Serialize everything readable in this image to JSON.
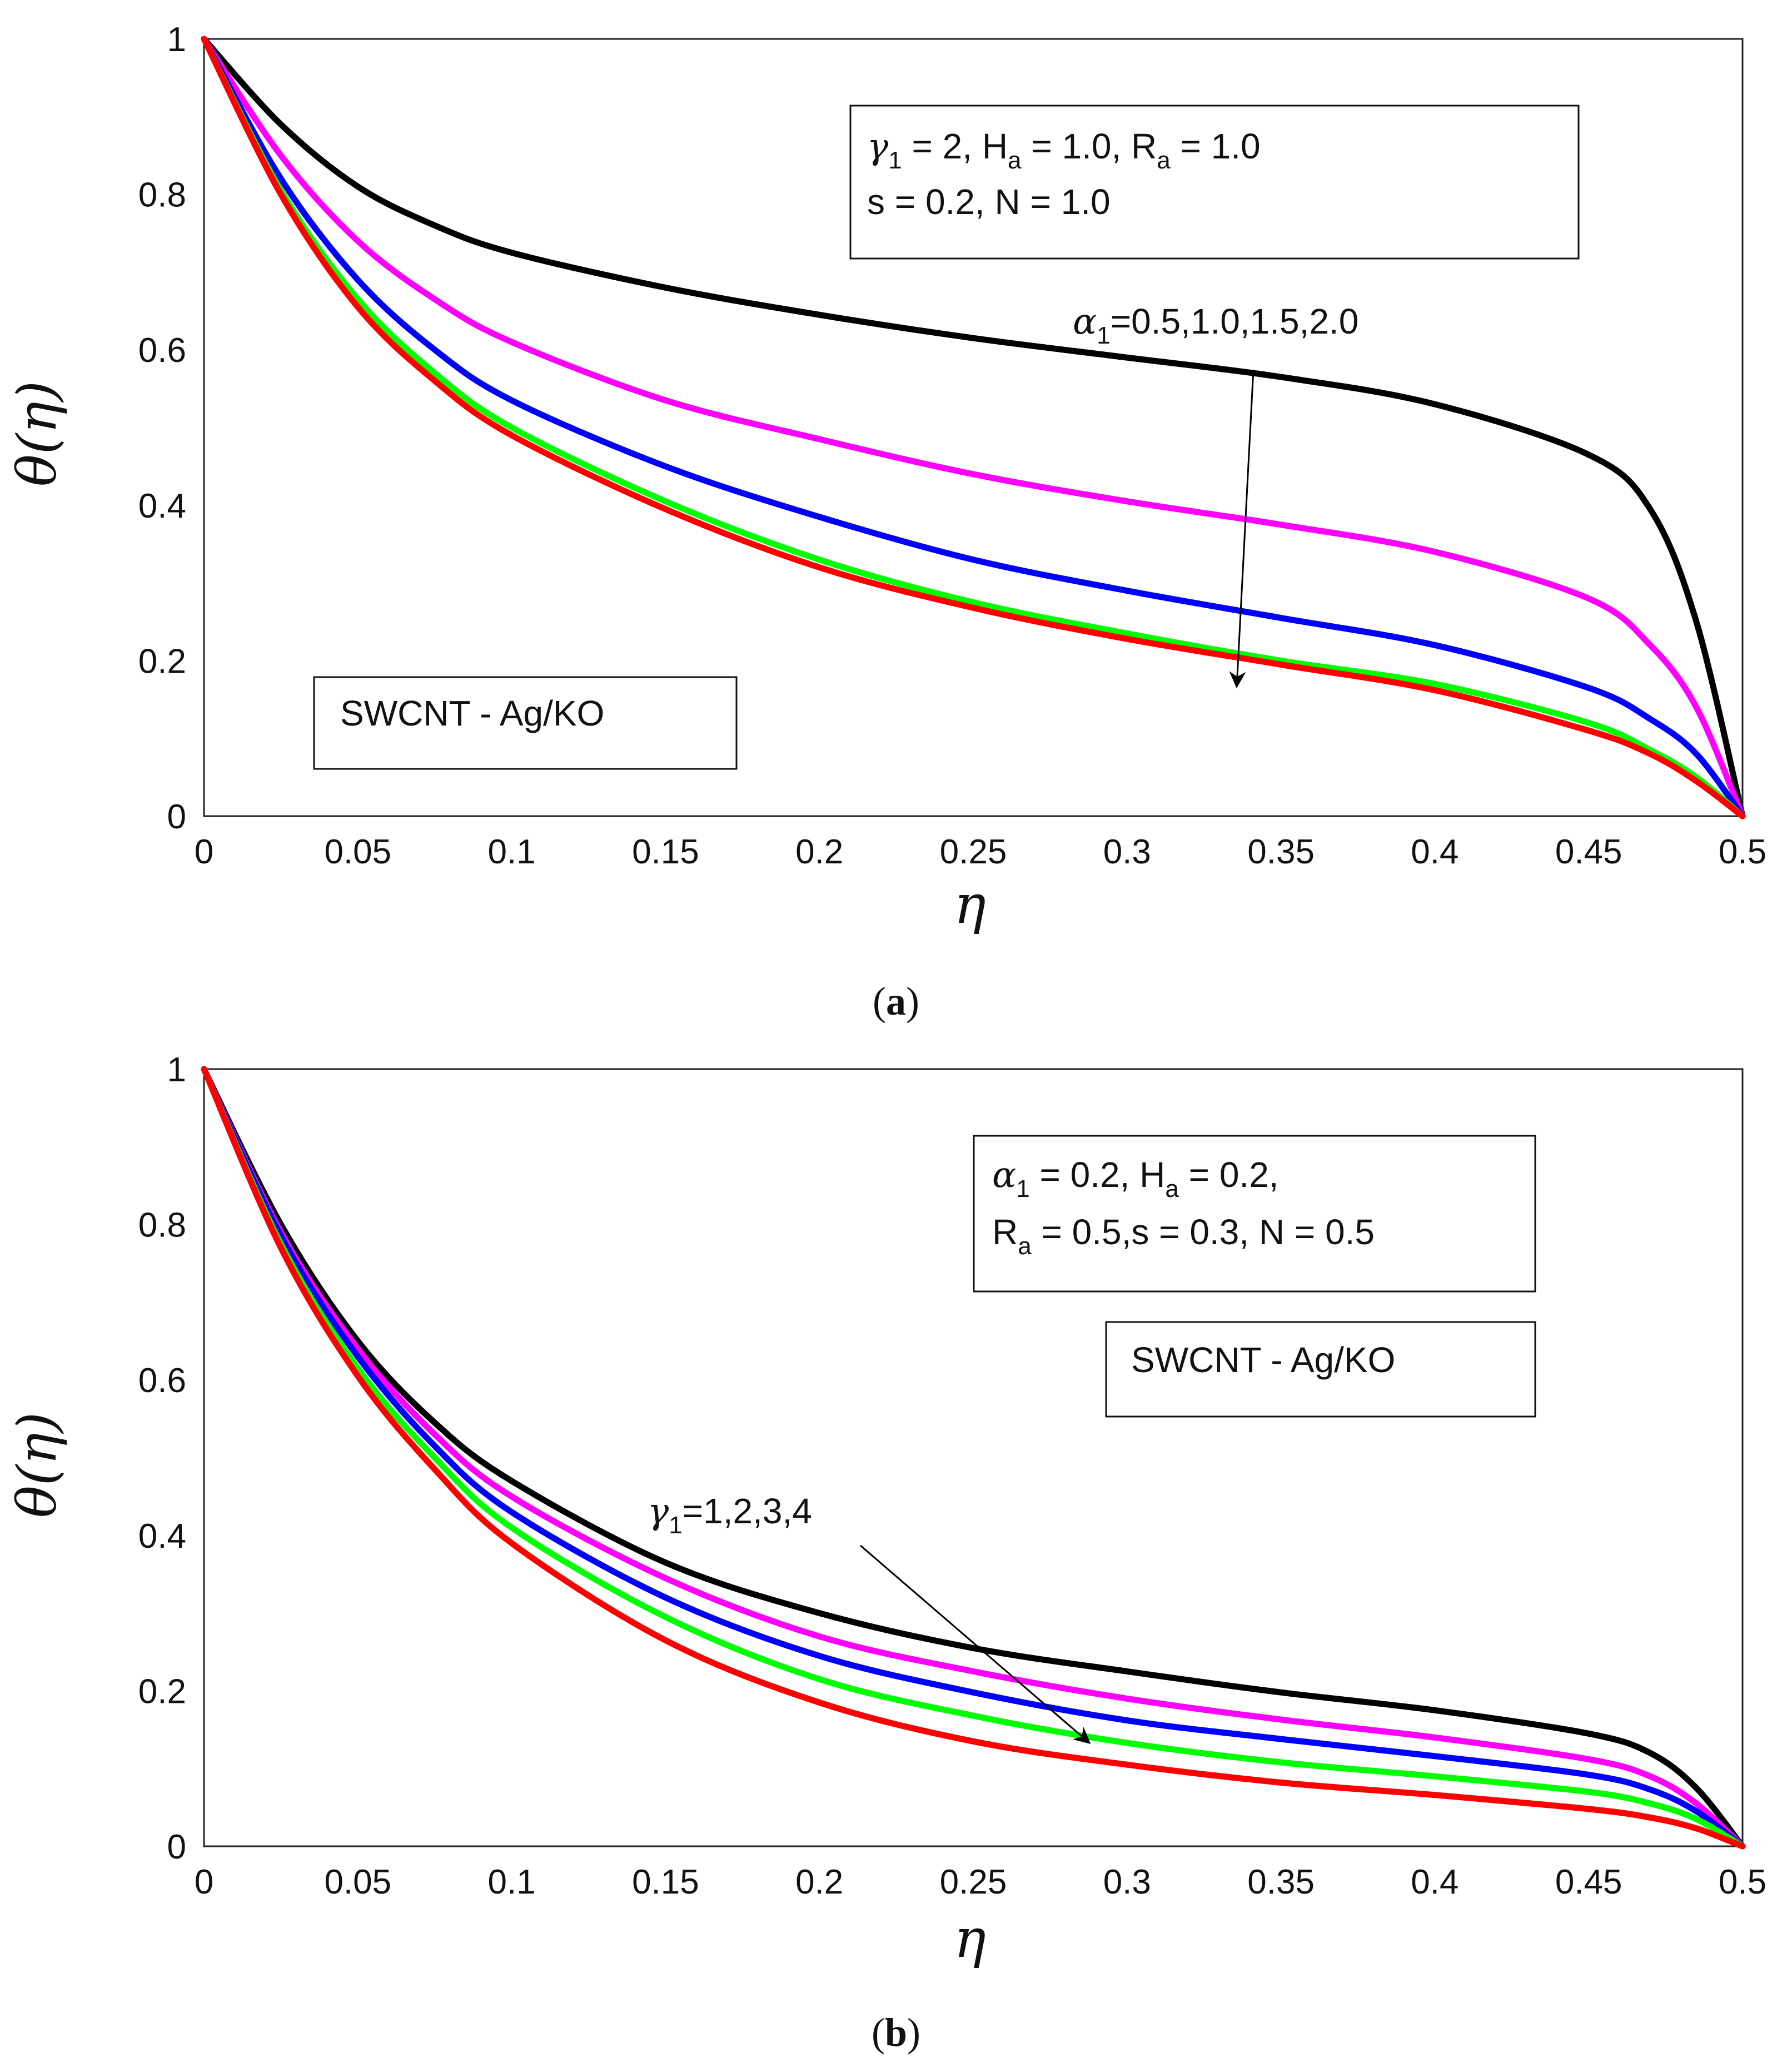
{
  "chart_data": [
    {
      "type": "line",
      "panel": "a",
      "caption": {
        "open": "(",
        "letter": "a",
        "close": ")"
      },
      "xlabel": "η",
      "ylabel": "θ(η)",
      "xlim": [
        0,
        0.5
      ],
      "ylim": [
        0,
        1
      ],
      "grid": true,
      "x_ticks": [
        "0",
        "0.05",
        "0.1",
        "0.15",
        "0.2",
        "0.25",
        "0.3",
        "0.35",
        "0.4",
        "0.45",
        "0.5"
      ],
      "y_ticks": [
        "0",
        "0.2",
        "0.4",
        "0.6",
        "0.8",
        "1"
      ],
      "x": [
        0,
        0.025,
        0.05,
        0.075,
        0.1,
        0.15,
        0.2,
        0.25,
        0.3,
        0.35,
        0.4,
        0.45,
        0.47,
        0.485,
        0.5
      ],
      "series": [
        {
          "name": "α1=0.5",
          "color": "#000000",
          "values": [
            1.0,
            0.89,
            0.81,
            0.76,
            0.725,
            0.68,
            0.645,
            0.615,
            0.59,
            0.565,
            0.53,
            0.465,
            0.395,
            0.25,
            0.0
          ]
        },
        {
          "name": "α1=1.0",
          "color": "#ff00ff",
          "values": [
            1.0,
            0.85,
            0.74,
            0.665,
            0.61,
            0.535,
            0.485,
            0.44,
            0.405,
            0.375,
            0.34,
            0.28,
            0.22,
            0.14,
            0.0
          ]
        },
        {
          "name": "α1=1.5",
          "color": "#0000ff",
          "values": [
            1.0,
            0.82,
            0.69,
            0.6,
            0.535,
            0.45,
            0.385,
            0.33,
            0.29,
            0.255,
            0.22,
            0.165,
            0.125,
            0.08,
            0.0
          ]
        },
        {
          "name": "α1=2.0",
          "color": "#00ff00",
          "values": [
            1.0,
            0.805,
            0.665,
            0.57,
            0.5,
            0.405,
            0.33,
            0.275,
            0.235,
            0.2,
            0.17,
            0.12,
            0.085,
            0.05,
            0.0
          ]
        },
        {
          "name": "α1=2.0 (red)",
          "color": "#ff0000",
          "values": [
            1.0,
            0.8,
            0.655,
            0.56,
            0.49,
            0.395,
            0.32,
            0.268,
            0.228,
            0.195,
            0.162,
            0.11,
            0.08,
            0.045,
            0.0
          ]
        }
      ],
      "annotations": {
        "params_line1": {
          "g": "γ",
          "gsub": "1",
          "t1": " = 2, H",
          "hsub": "a",
          "t2": " = 1.0, R",
          "rsub": "a",
          "t3": " = 1.0"
        },
        "params_line2": "s = 0.2, N = 1.0",
        "arrow_label": {
          "sym": "α",
          "sub": "1",
          "text": "=0.5,1.0,1.5,2.0"
        },
        "material": "SWCNT - Ag/KO"
      }
    },
    {
      "type": "line",
      "panel": "b",
      "caption": {
        "open": "(",
        "letter": "b",
        "close": ")"
      },
      "xlabel": "η",
      "ylabel": "θ(η)",
      "xlim": [
        0,
        0.5
      ],
      "ylim": [
        0,
        1
      ],
      "grid": true,
      "x_ticks": [
        "0",
        "0.05",
        "0.1",
        "0.15",
        "0.2",
        "0.25",
        "0.3",
        "0.35",
        "0.4",
        "0.45",
        "0.5"
      ],
      "y_ticks": [
        "0",
        "0.2",
        "0.4",
        "0.6",
        "0.8",
        "1"
      ],
      "x": [
        0,
        0.025,
        0.05,
        0.075,
        0.1,
        0.15,
        0.2,
        0.25,
        0.3,
        0.35,
        0.4,
        0.45,
        0.47,
        0.485,
        0.5
      ],
      "series": [
        {
          "name": "γ1=1",
          "color": "#000000",
          "values": [
            1.0,
            0.8,
            0.65,
            0.545,
            0.47,
            0.365,
            0.3,
            0.255,
            0.225,
            0.198,
            0.175,
            0.145,
            0.12,
            0.075,
            0.0
          ]
        },
        {
          "name": "γ1=2",
          "color": "#ff00ff",
          "values": [
            1.0,
            0.79,
            0.64,
            0.53,
            0.45,
            0.345,
            0.27,
            0.225,
            0.19,
            0.163,
            0.14,
            0.112,
            0.09,
            0.055,
            0.0
          ]
        },
        {
          "name": "γ1=3",
          "color": "#0000ff",
          "values": [
            1.0,
            0.785,
            0.63,
            0.515,
            0.43,
            0.32,
            0.245,
            0.198,
            0.162,
            0.138,
            0.116,
            0.092,
            0.073,
            0.045,
            0.0
          ]
        },
        {
          "name": "γ1=4",
          "color": "#00ff00",
          "values": [
            1.0,
            0.775,
            0.615,
            0.5,
            0.41,
            0.295,
            0.215,
            0.168,
            0.133,
            0.108,
            0.09,
            0.07,
            0.055,
            0.035,
            0.0
          ]
        },
        {
          "name": "γ1=4 (red)",
          "color": "#ff0000",
          "values": [
            1.0,
            0.77,
            0.605,
            0.485,
            0.39,
            0.265,
            0.185,
            0.135,
            0.105,
            0.082,
            0.066,
            0.048,
            0.037,
            0.023,
            0.0
          ]
        }
      ],
      "annotations": {
        "params_line1": {
          "a": "α",
          "asub": "1",
          "t1": " = 0.2, H",
          "hsub": "a",
          "t2": " = 0.2,"
        },
        "params_line2": {
          "t0": "R",
          "rsub": "a",
          "t1": " = 0.5,s = 0.3, N = 0.5"
        },
        "material": "SWCNT - Ag/KO",
        "arrow_label": {
          "sym": "γ",
          "sub": "1",
          "text": "=1,2,3,4"
        }
      }
    }
  ]
}
